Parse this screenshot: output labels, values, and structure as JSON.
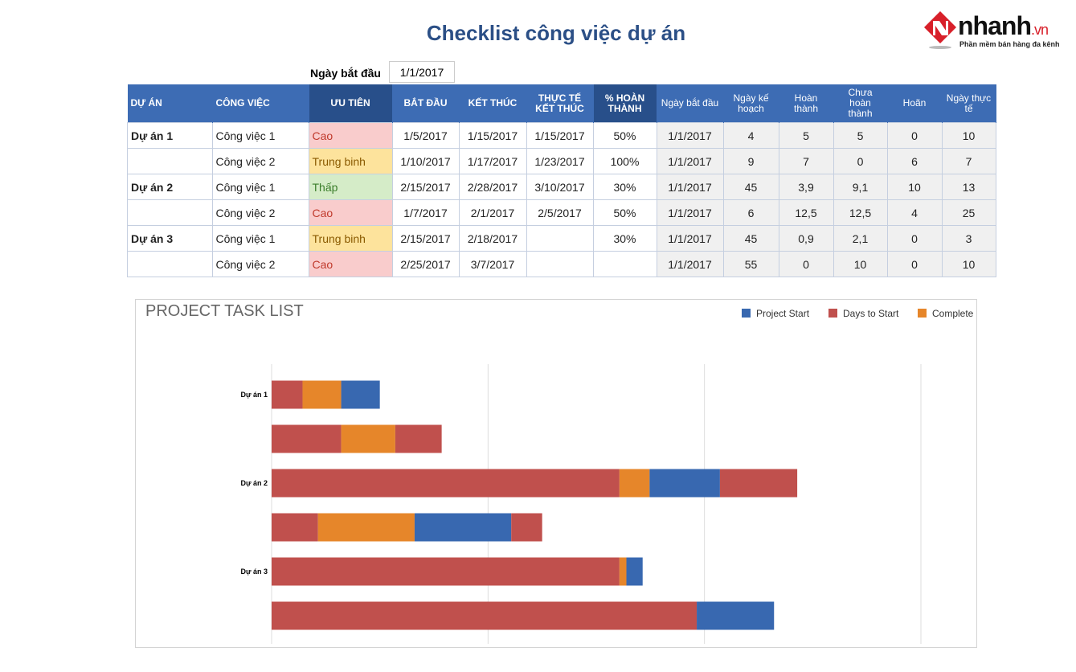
{
  "title": "Checklist công việc dự án",
  "logo": {
    "word": "nhanh",
    "tld": ".vn",
    "tagline": "Phần mềm bán hàng đa kênh"
  },
  "start": {
    "label": "Ngày bắt đầu",
    "value": "1/1/2017"
  },
  "table": {
    "headers": [
      "DỰ ÁN",
      "CÔNG VIỆC",
      "ƯU TIÊN",
      "BẮT ĐẦU",
      "KẾT THÚC",
      "THỰC TẾ KẾT THÚC",
      "% HOÀN THÀNH",
      "Ngày bắt đầu",
      "Ngày kế hoạch",
      "Hoàn thành",
      "Chưa hoàn thành",
      "Hoãn",
      "Ngày thực tế"
    ],
    "rows": [
      {
        "project": "Dự án 1",
        "task": "Công việc 1",
        "priority": "Cao",
        "plevel": "high",
        "start": "1/5/2017",
        "end": "1/15/2017",
        "actual_end": "1/15/2017",
        "pct": "50%",
        "base": "1/1/2017",
        "planned": "4",
        "done": "5",
        "notdone": "5",
        "delayed": "0",
        "actual_days": "10"
      },
      {
        "project": "",
        "task": "Công việc 2",
        "priority": "Trung binh",
        "plevel": "med",
        "start": "1/10/2017",
        "end": "1/17/2017",
        "actual_end": "1/23/2017",
        "pct": "100%",
        "base": "1/1/2017",
        "planned": "9",
        "done": "7",
        "notdone": "0",
        "delayed": "6",
        "actual_days": "7"
      },
      {
        "project": "Dự án 2",
        "task": "Công việc 1",
        "priority": "Thấp",
        "plevel": "low",
        "start": "2/15/2017",
        "end": "2/28/2017",
        "actual_end": "3/10/2017",
        "pct": "30%",
        "base": "1/1/2017",
        "planned": "45",
        "done": "3,9",
        "notdone": "9,1",
        "delayed": "10",
        "actual_days": "13"
      },
      {
        "project": "",
        "task": "Công việc 2",
        "priority": "Cao",
        "plevel": "high",
        "start": "1/7/2017",
        "end": "2/1/2017",
        "actual_end": "2/5/2017",
        "pct": "50%",
        "base": "1/1/2017",
        "planned": "6",
        "done": "12,5",
        "notdone": "12,5",
        "delayed": "4",
        "actual_days": "25"
      },
      {
        "project": "Dự án 3",
        "task": "Công việc 1",
        "priority": "Trung binh",
        "plevel": "med",
        "start": "2/15/2017",
        "end": "2/18/2017",
        "actual_end": "",
        "pct": "30%",
        "base": "1/1/2017",
        "planned": "45",
        "done": "0,9",
        "notdone": "2,1",
        "delayed": "0",
        "actual_days": "3"
      },
      {
        "project": "",
        "task": "Công việc 2",
        "priority": "Cao",
        "plevel": "high",
        "start": "2/25/2017",
        "end": "3/7/2017",
        "actual_end": "",
        "pct": "",
        "base": "1/1/2017",
        "planned": "55",
        "done": "0",
        "notdone": "10",
        "delayed": "0",
        "actual_days": "10"
      }
    ]
  },
  "chart_data": {
    "type": "bar",
    "orientation": "horizontal",
    "stacked": true,
    "title": "PROJECT TASK LIST",
    "categories": [
      "Dự án 1",
      "",
      "Dự án 2",
      "",
      "Dự án 3",
      ""
    ],
    "legend": {
      "position": "top-right",
      "entries": [
        "Project Start",
        "Days to Start",
        "Complete"
      ]
    },
    "xlim": [
      0,
      84
    ],
    "x_gridlines": [
      0,
      28,
      56,
      84
    ],
    "x_tick_labels": false,
    "stack_order": [
      "Days to Start",
      "Complete",
      "Project Start",
      "extra"
    ],
    "series": [
      {
        "name": "Days to Start",
        "color": "#c0504d",
        "values": [
          4,
          9,
          45,
          6,
          45,
          55
        ]
      },
      {
        "name": "Complete",
        "color": "#e6862a",
        "values": [
          5,
          7,
          3.9,
          12.5,
          0.9,
          0
        ]
      },
      {
        "name": "Project Start",
        "color": "#3868b0",
        "values": [
          5,
          0,
          9.1,
          12.5,
          2.1,
          10
        ]
      },
      {
        "key": "extra",
        "color": "#c0504d",
        "values": [
          0,
          6,
          10,
          4,
          0,
          0
        ]
      }
    ]
  }
}
